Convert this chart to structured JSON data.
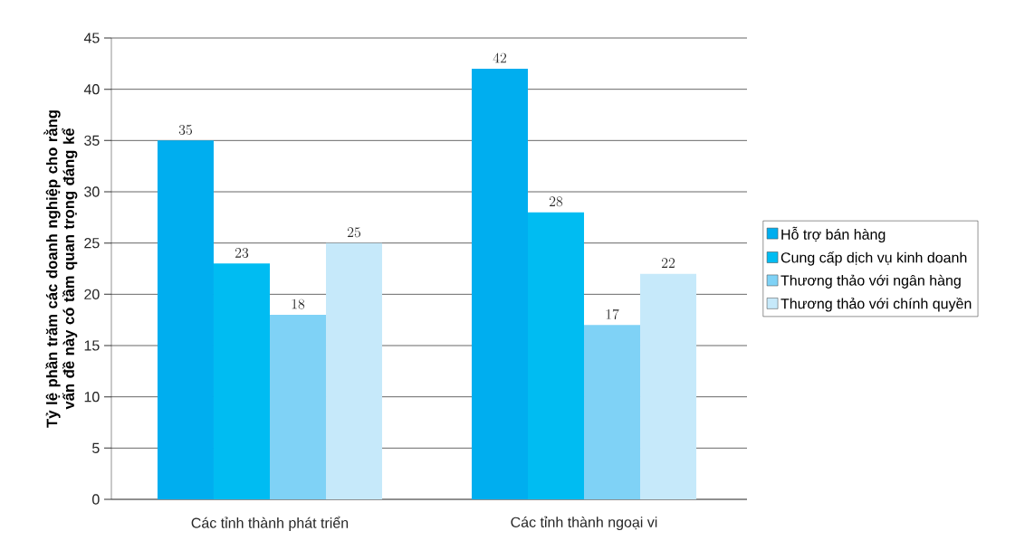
{
  "chart_data": {
    "type": "bar",
    "ylabel": "Tỷ lệ phần trăm các doanh nghiệp cho rằng vấn đề này có tầm quan trọng đáng kể",
    "categories": [
      "Các tỉnh thành phát triển",
      "Các tỉnh thành ngoại vi"
    ],
    "series": [
      {
        "name": "Hỗ trợ bán hàng",
        "color": "#00aeef",
        "values": [
          35,
          42
        ]
      },
      {
        "name": "Cung cấp dịch vụ kinh doanh",
        "color": "#00bcf2",
        "values": [
          23,
          28
        ]
      },
      {
        "name": "Thương thảo với ngân hàng",
        "color": "#7fd2f6",
        "values": [
          18,
          17
        ]
      },
      {
        "name": "Thương thảo với chính quyền",
        "color": "#c6e9fa",
        "values": [
          25,
          22
        ]
      }
    ],
    "ylim": [
      0,
      45
    ],
    "yticks": [
      0,
      5,
      10,
      15,
      20,
      25,
      30,
      35,
      40,
      45
    ],
    "grid": "y",
    "legend": "right",
    "data_labels": true
  }
}
